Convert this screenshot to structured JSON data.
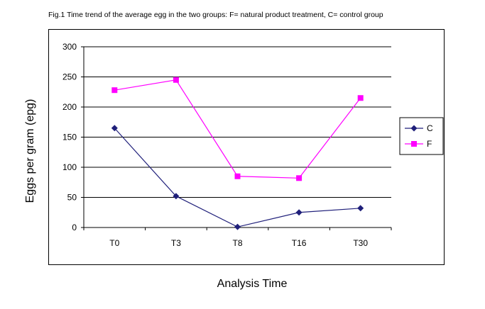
{
  "caption": "Fig.1 Time trend of the average egg in the two groups: F= natural product treatment, C= control group",
  "chart_data": {
    "type": "line",
    "title": "",
    "xlabel": "Analysis Time",
    "ylabel": "Eggs per gram (epg)",
    "categories": [
      "T0",
      "T3",
      "T8",
      "T16",
      "T30"
    ],
    "ylim": [
      0,
      300
    ],
    "yticks": [
      0,
      50,
      100,
      150,
      200,
      250,
      300
    ],
    "grid": true,
    "legend_position": "right",
    "series": [
      {
        "name": "C",
        "values": [
          165,
          52,
          1,
          25,
          32
        ],
        "color": "#1f1f7a",
        "marker": "diamond"
      },
      {
        "name": "F",
        "values": [
          228,
          245,
          85,
          82,
          215
        ],
        "color": "#ff00ff",
        "marker": "square"
      }
    ]
  }
}
